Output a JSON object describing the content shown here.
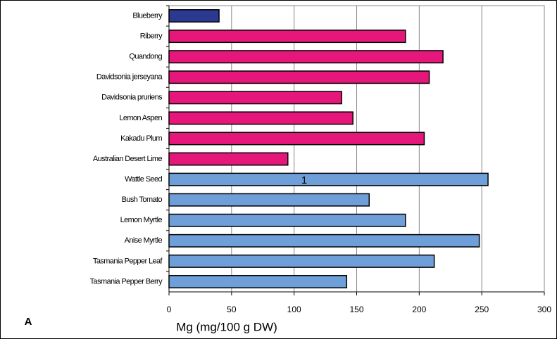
{
  "chart_data": {
    "type": "bar",
    "orientation": "horizontal",
    "categories": [
      "Blueberry",
      "Riberry",
      "Quandong",
      "Davidsonia jerseyana",
      "Davidsonia pruriens",
      "Lemon Aspen",
      "Kakadu Plum",
      "Australian Desert Lime",
      "Wattle Seed",
      "Bush Tomato",
      "Lemon Myrtle",
      "Anise Myrtle",
      "Tasmania Pepper Leaf",
      "Tasmania Pepper Berry"
    ],
    "values": [
      40,
      189,
      219,
      208,
      138,
      147,
      204,
      95,
      255,
      160,
      189,
      248,
      212,
      142
    ],
    "colors": [
      "#2b3990",
      "#e6177a",
      "#e6177a",
      "#e6177a",
      "#e6177a",
      "#e6177a",
      "#e6177a",
      "#e6177a",
      "#6f9fd8",
      "#6f9fd8",
      "#6f9fd8",
      "#6f9fd8",
      "#6f9fd8",
      "#6f9fd8"
    ],
    "xlabel": "Mg (mg/100 g DW)",
    "xlim": [
      0,
      300
    ],
    "xticks": [
      0,
      50,
      100,
      150,
      200,
      250,
      300
    ],
    "grid": true,
    "annotation": "1",
    "panel_label": "A"
  }
}
